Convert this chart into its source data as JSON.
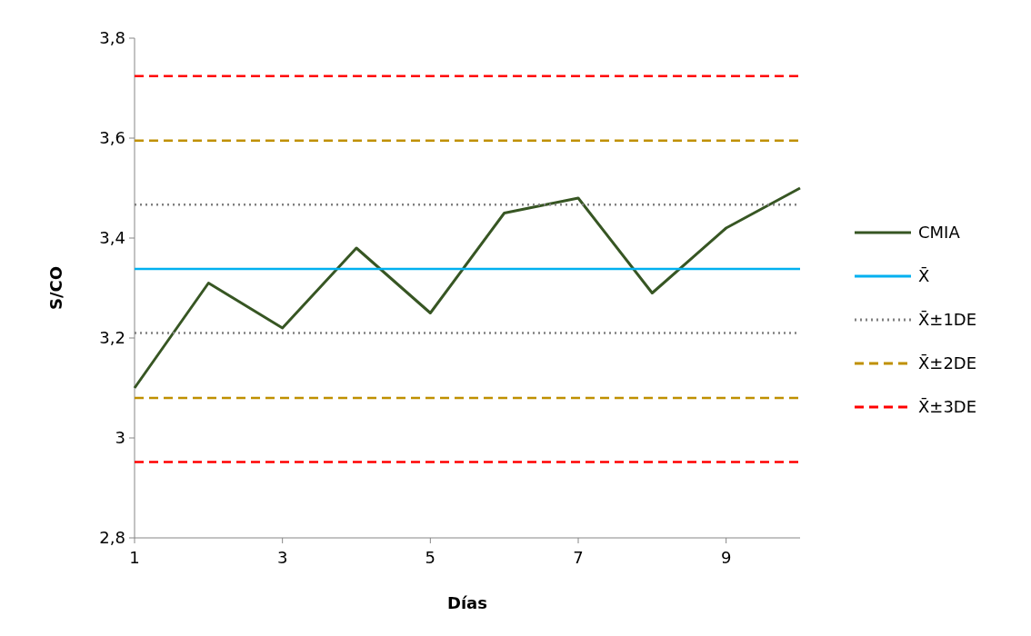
{
  "chart_data": {
    "type": "line",
    "xlabel": "Días",
    "ylabel": "S/CO",
    "x": [
      1,
      2,
      3,
      4,
      5,
      6,
      7,
      8,
      9,
      10
    ],
    "xlim": [
      1,
      10
    ],
    "xticks": [
      1,
      3,
      5,
      7,
      9
    ],
    "ylim": [
      2.8,
      3.8
    ],
    "yticks": [
      {
        "value": 2.8,
        "label": "2,8"
      },
      3,
      {
        "value": 3.2,
        "label": "3,2"
      },
      {
        "value": 3.4,
        "label": "3,4"
      },
      {
        "value": 3.6,
        "label": "3,6"
      },
      {
        "value": 3.8,
        "label": "3,8"
      }
    ],
    "grid": false,
    "legend": "right",
    "marker": "none",
    "series": [
      {
        "name": "CMIA",
        "color": "#375623",
        "values": [
          3.1,
          3.31,
          3.22,
          3.38,
          3.25,
          3.45,
          3.48,
          3.29,
          3.42,
          3.5
        ],
        "line_style": "solid"
      },
      {
        "name": "X̄",
        "color": "#00b0f0",
        "values": [
          3.338,
          3.338,
          3.338,
          3.338,
          3.338,
          3.338,
          3.338,
          3.338,
          3.338,
          3.338
        ],
        "line_style": "solid"
      },
      {
        "name": "X̄±1DE",
        "color": "#808080",
        "values": [
          3.467,
          3.467,
          3.467,
          3.467,
          3.467,
          3.467,
          3.467,
          3.467,
          3.467,
          3.467
        ],
        "line_style": "dotted"
      },
      {
        "color": "#808080",
        "values": [
          3.21,
          3.21,
          3.21,
          3.21,
          3.21,
          3.21,
          3.21,
          3.21,
          3.21,
          3.21
        ],
        "line_style": "dotted"
      },
      {
        "name": "X̄±2DE",
        "color": "#bf9000",
        "values": [
          3.595,
          3.595,
          3.595,
          3.595,
          3.595,
          3.595,
          3.595,
          3.595,
          3.595,
          3.595
        ],
        "line_style": "dashed"
      },
      {
        "color": "#bf9000",
        "values": [
          3.08,
          3.08,
          3.08,
          3.08,
          3.08,
          3.08,
          3.08,
          3.08,
          3.08,
          3.08
        ],
        "line_style": "dashed"
      },
      {
        "name": "X̄±3DE",
        "color": "#ff0000",
        "values": [
          3.724,
          3.724,
          3.724,
          3.724,
          3.724,
          3.724,
          3.724,
          3.724,
          3.724,
          3.724
        ],
        "line_style": "dashed"
      },
      {
        "color": "#ff0000",
        "values": [
          2.952,
          2.952,
          2.952,
          2.952,
          2.952,
          2.952,
          2.952,
          2.952,
          2.952,
          2.952
        ],
        "line_style": "dashed"
      }
    ]
  }
}
